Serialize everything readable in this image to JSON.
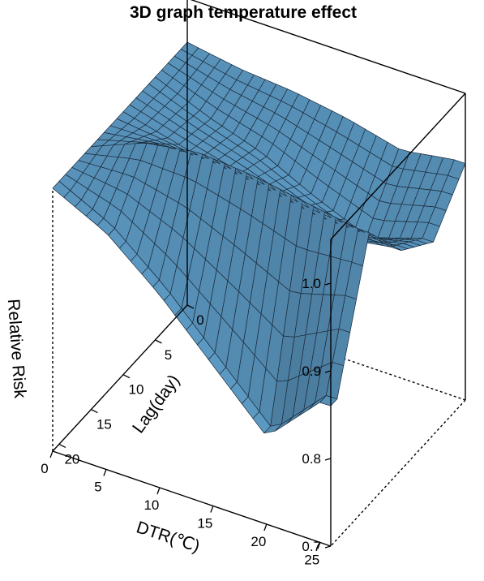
{
  "chart_data": {
    "type": "surface",
    "title": "3D graph temperature effect",
    "xlabel": "DTR(℃)",
    "ylabel": "Lag(day)",
    "zlabel": "Relative Risk",
    "xlim": [
      0,
      26
    ],
    "ylim": [
      0,
      21
    ],
    "zlim": [
      0.7,
      1.05
    ],
    "x_ticks": [
      "0",
      "5",
      "10",
      "15",
      "20",
      "25"
    ],
    "y_ticks": [
      "0",
      "5",
      "10",
      "15",
      "20"
    ],
    "z_ticks": [
      "0.7",
      "0.8",
      "0.9",
      "1.0"
    ],
    "surface_color": "#6ab0e0",
    "edge_color": "#1a2a3a",
    "dtr": [
      0,
      5,
      10,
      15,
      20,
      25
    ],
    "lag": [
      0,
      5,
      10,
      15,
      20
    ],
    "relative_risk": [
      [
        1.0,
        0.99,
        0.985,
        0.975,
        0.96,
        0.97
      ],
      [
        1.0,
        0.975,
        0.955,
        0.925,
        0.9,
        0.92
      ],
      [
        1.0,
        0.985,
        0.97,
        0.955,
        0.94,
        0.95
      ],
      [
        1.0,
        1.025,
        1.035,
        1.03,
        1.02,
        1.01
      ],
      [
        1.0,
        0.97,
        0.92,
        0.86,
        0.8,
        0.86
      ]
    ]
  }
}
